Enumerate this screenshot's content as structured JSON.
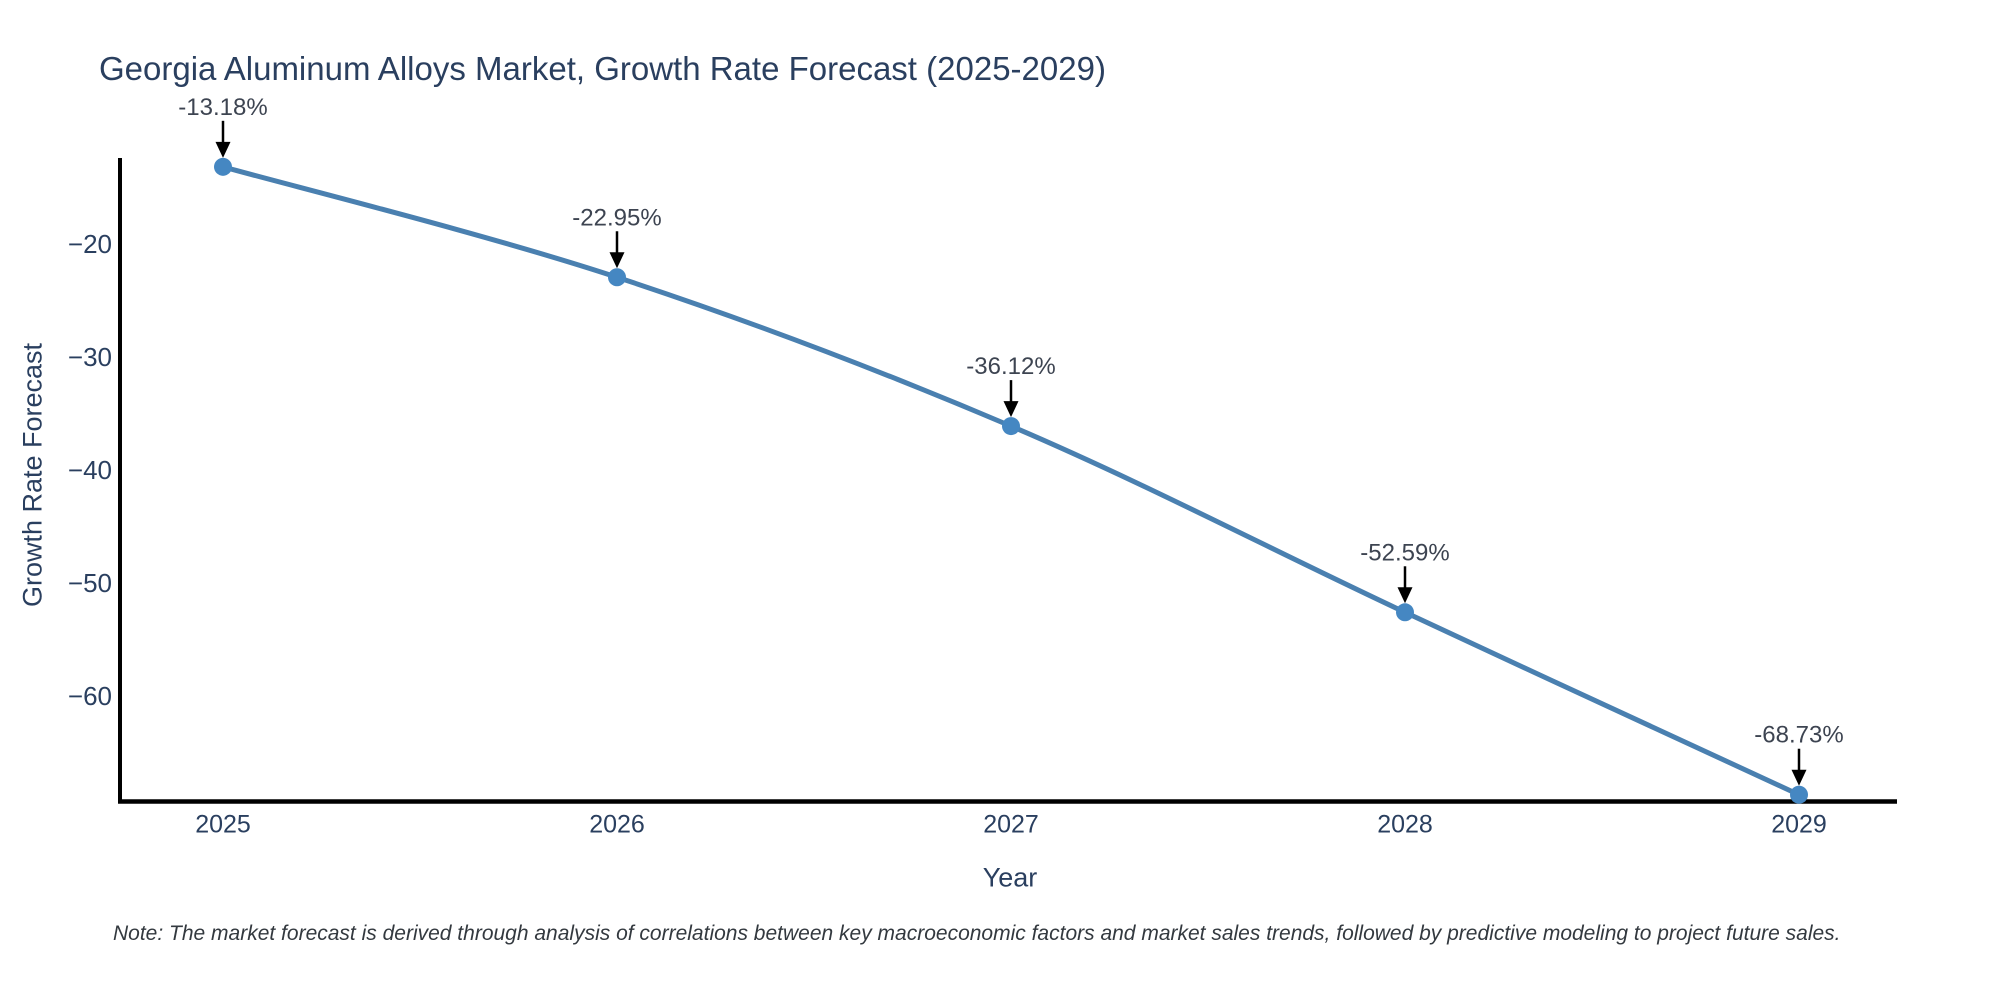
{
  "chart": {
    "title": "Georgia Aluminum Alloys Market, Growth Rate Forecast (2025-2029)",
    "y_axis_title": "Growth Rate Forecast",
    "x_axis_title": "Year",
    "note": "Note: The market forecast is derived through analysis of correlations between key macroeconomic factors and market sales trends, followed by predictive modeling to project future sales."
  },
  "chart_data": {
    "type": "line",
    "title": "Georgia Aluminum Alloys Market, Growth Rate Forecast (2025-2029)",
    "xlabel": "Year",
    "ylabel": "Growth Rate Forecast",
    "x": [
      2025,
      2026,
      2027,
      2028,
      2029
    ],
    "x_tick_labels": [
      "2025",
      "2026",
      "2027",
      "2028",
      "2029"
    ],
    "values": [
      -13.18,
      -22.95,
      -36.12,
      -52.59,
      -68.73
    ],
    "point_labels": [
      "-13.18%",
      "-22.95%",
      "-36.12%",
      "-52.59%",
      "-68.73%"
    ],
    "y_ticks": [
      -20,
      -30,
      -40,
      -50,
      -60
    ],
    "y_tick_labels": [
      "−20",
      "−30",
      "−40",
      "−50",
      "−60"
    ],
    "ylim": [
      -12.4,
      -69.33
    ],
    "grid": false,
    "legend": false,
    "line_shape": "spline",
    "marker": "circle",
    "annotation_arrows": true,
    "colors": {
      "line": "#4a80b0",
      "marker": "#4587c2",
      "axis": "#000000",
      "arrow": "#000000",
      "title": "#2a3f5f",
      "tick": "#2a3f5f",
      "annotation": "#3d4451",
      "note": "#33393f",
      "background": "#ffffff"
    }
  }
}
